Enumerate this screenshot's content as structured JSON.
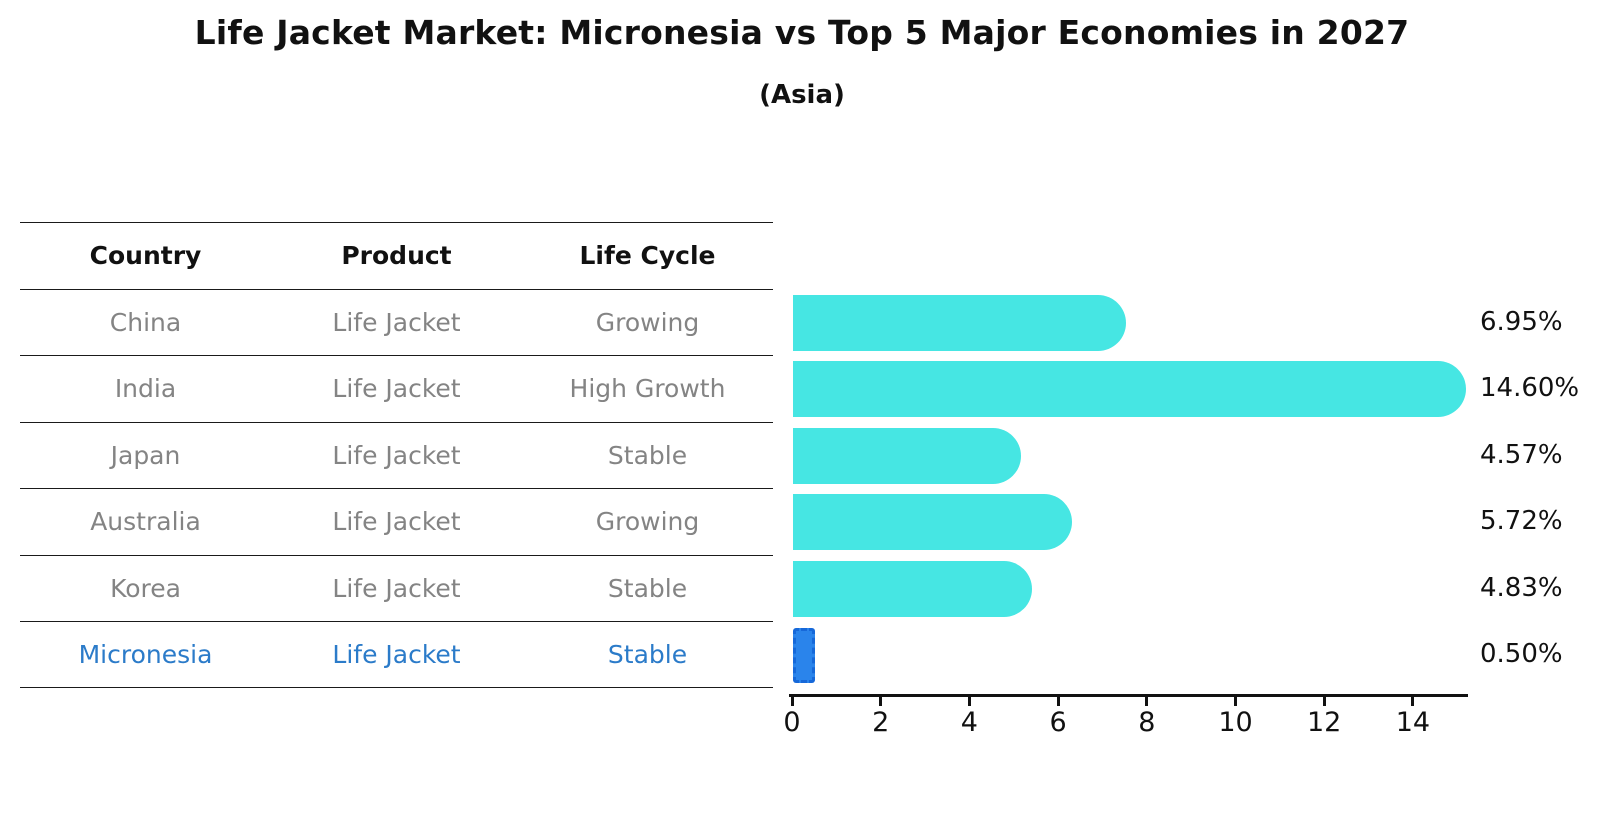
{
  "title": "Life Jacket Market: Micronesia vs Top 5 Major Economies in 2027",
  "subtitle": "(Asia)",
  "table": {
    "headers": [
      "Country",
      "Product",
      "Life Cycle"
    ],
    "rows": [
      {
        "country": "China",
        "product": "Life Jacket",
        "life_cycle": "Growing",
        "highlight": false
      },
      {
        "country": "India",
        "product": "Life Jacket",
        "life_cycle": "High Growth",
        "highlight": false
      },
      {
        "country": "Japan",
        "product": "Life Jacket",
        "life_cycle": "Stable",
        "highlight": false
      },
      {
        "country": "Australia",
        "product": "Life Jacket",
        "life_cycle": "Growing",
        "highlight": false
      },
      {
        "country": "Korea",
        "product": "Life Jacket",
        "life_cycle": "Stable",
        "highlight": false
      },
      {
        "country": "Micronesia",
        "product": "Life Jacket",
        "life_cycle": "Stable",
        "highlight": true
      }
    ]
  },
  "chart_data": {
    "type": "bar",
    "orientation": "horizontal",
    "title": "Life Jacket Market: Micronesia vs Top 5 Major Economies in 2027",
    "subtitle": "(Asia)",
    "categories": [
      "China",
      "India",
      "Japan",
      "Australia",
      "Korea",
      "Micronesia"
    ],
    "values": [
      6.95,
      14.6,
      4.57,
      5.72,
      4.83,
      0.5
    ],
    "value_labels": [
      "6.95%",
      "14.60%",
      "4.57%",
      "5.72%",
      "4.83%",
      "0.50%"
    ],
    "xlabel": "",
    "ylabel": "",
    "xlim": [
      0,
      15.2
    ],
    "xticks": [
      0,
      2,
      4,
      6,
      8,
      10,
      12,
      14
    ],
    "grid": false,
    "legend": false
  },
  "colors": {
    "bar": "#46E6E3",
    "highlight_bar": "#2A84EB",
    "highlight_bar_border": "#1668D9",
    "highlight_text": "#2B7BC9",
    "text": "#111111",
    "muted_text": "#848484"
  }
}
